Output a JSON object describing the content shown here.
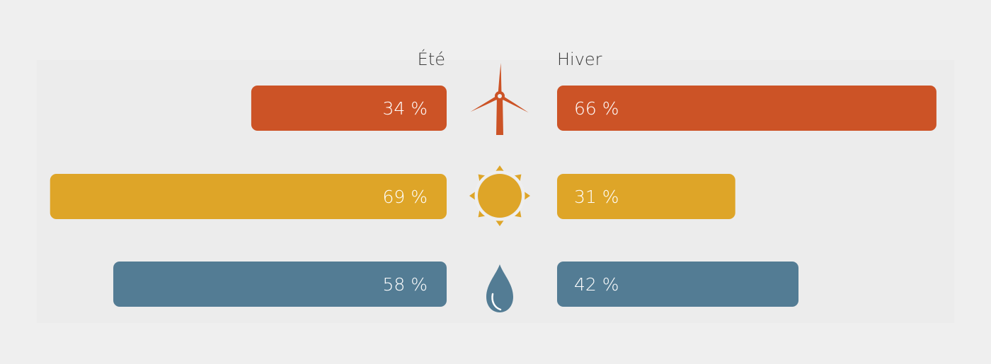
{
  "chart_data": {
    "type": "bar",
    "orientation": "horizontal-diverging",
    "series": [
      {
        "name": "Été",
        "side": "left"
      },
      {
        "name": "Hiver",
        "side": "right"
      }
    ],
    "categories": [
      {
        "icon": "wind-turbine-icon",
        "color": "#cc5326",
        "ete": 34,
        "hiver": 66,
        "ete_label": "34 %",
        "hiver_label": "66 %"
      },
      {
        "icon": "sun-icon",
        "color": "#dea528",
        "ete": 69,
        "hiver": 31,
        "ete_label": "69 %",
        "hiver_label": "31 %"
      },
      {
        "icon": "water-drop-icon",
        "color": "#537c94",
        "ete": 58,
        "hiver": 42,
        "ete_label": "58 %",
        "hiver_label": "42 %"
      }
    ],
    "xlim": [
      0,
      100
    ]
  }
}
